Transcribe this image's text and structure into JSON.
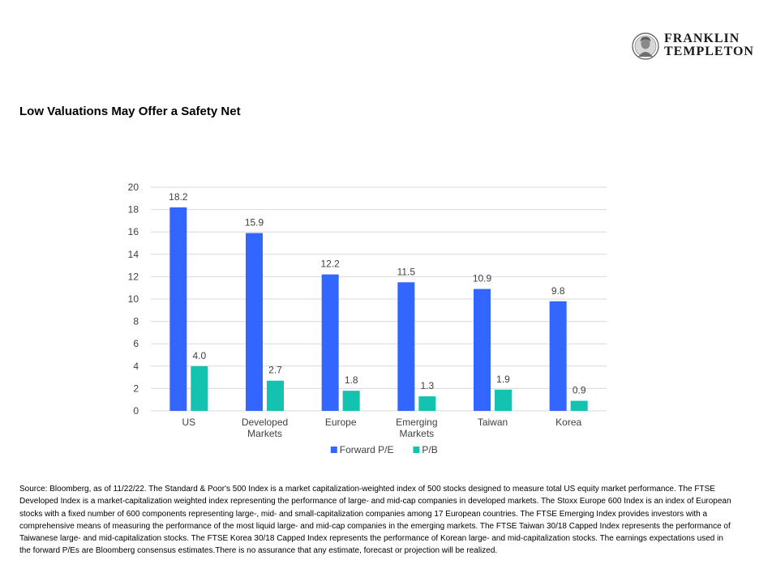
{
  "brand": {
    "line1": "FRANKLIN",
    "line2": "TEMPLETON",
    "medallion_icon": "franklin-portrait-icon"
  },
  "page_title": "Low Valuations May Offer a Safety Net",
  "chart_data": {
    "type": "bar",
    "categories": [
      [
        "US"
      ],
      [
        "Developed",
        "Markets"
      ],
      [
        "Europe"
      ],
      [
        "Emerging",
        "Markets"
      ],
      [
        "Taiwan"
      ],
      [
        "Korea"
      ]
    ],
    "series": [
      {
        "name": "Forward P/E",
        "color": "#3366ff",
        "values": [
          18.2,
          15.9,
          12.2,
          11.5,
          10.9,
          9.8
        ],
        "labels": [
          "18.2",
          "15.9",
          "12.2",
          "11.5",
          "10.9",
          "9.8"
        ]
      },
      {
        "name": "P/B",
        "color": "#14c2b0",
        "values": [
          4.0,
          2.7,
          1.8,
          1.3,
          1.9,
          0.9
        ],
        "labels": [
          "4.0",
          "2.7",
          "1.8",
          "1.3",
          "1.9",
          "0.9"
        ]
      }
    ],
    "ylim": [
      0,
      20
    ],
    "yticks": [
      "0",
      "2",
      "4",
      "6",
      "8",
      "10",
      "12",
      "14",
      "16",
      "18",
      "20"
    ],
    "grid": true,
    "legend_position": "bottom"
  },
  "footnote": "Source: Bloomberg, as of 11/22/22. The Standard & Poor's 500 Index is a market capitalization-weighted index of 500 stocks designed to measure total US equity market performance. The FTSE Developed Index is a market-capitalization weighted index representing the performance of large- and mid-cap companies in developed markets. The Stoxx Europe 600 Index is an index of European stocks with a fixed number of 600 components representing large-, mid- and small-capitalization companies among 17 European countries. The FTSE Emerging Index provides investors with a comprehensive means of measuring the performance of the most liquid large- and mid-cap companies in the emerging markets. The FTSE Taiwan 30/18 Capped Index represents the performance of Taiwanese large- and mid-capitalization stocks. The FTSE Korea 30/18 Capped Index represents the performance of Korean large- and mid-capitalization stocks. The earnings expectations used in the forward P/Es are Bloomberg consensus estimates.There is no assurance that any estimate, forecast or projection will be realized."
}
